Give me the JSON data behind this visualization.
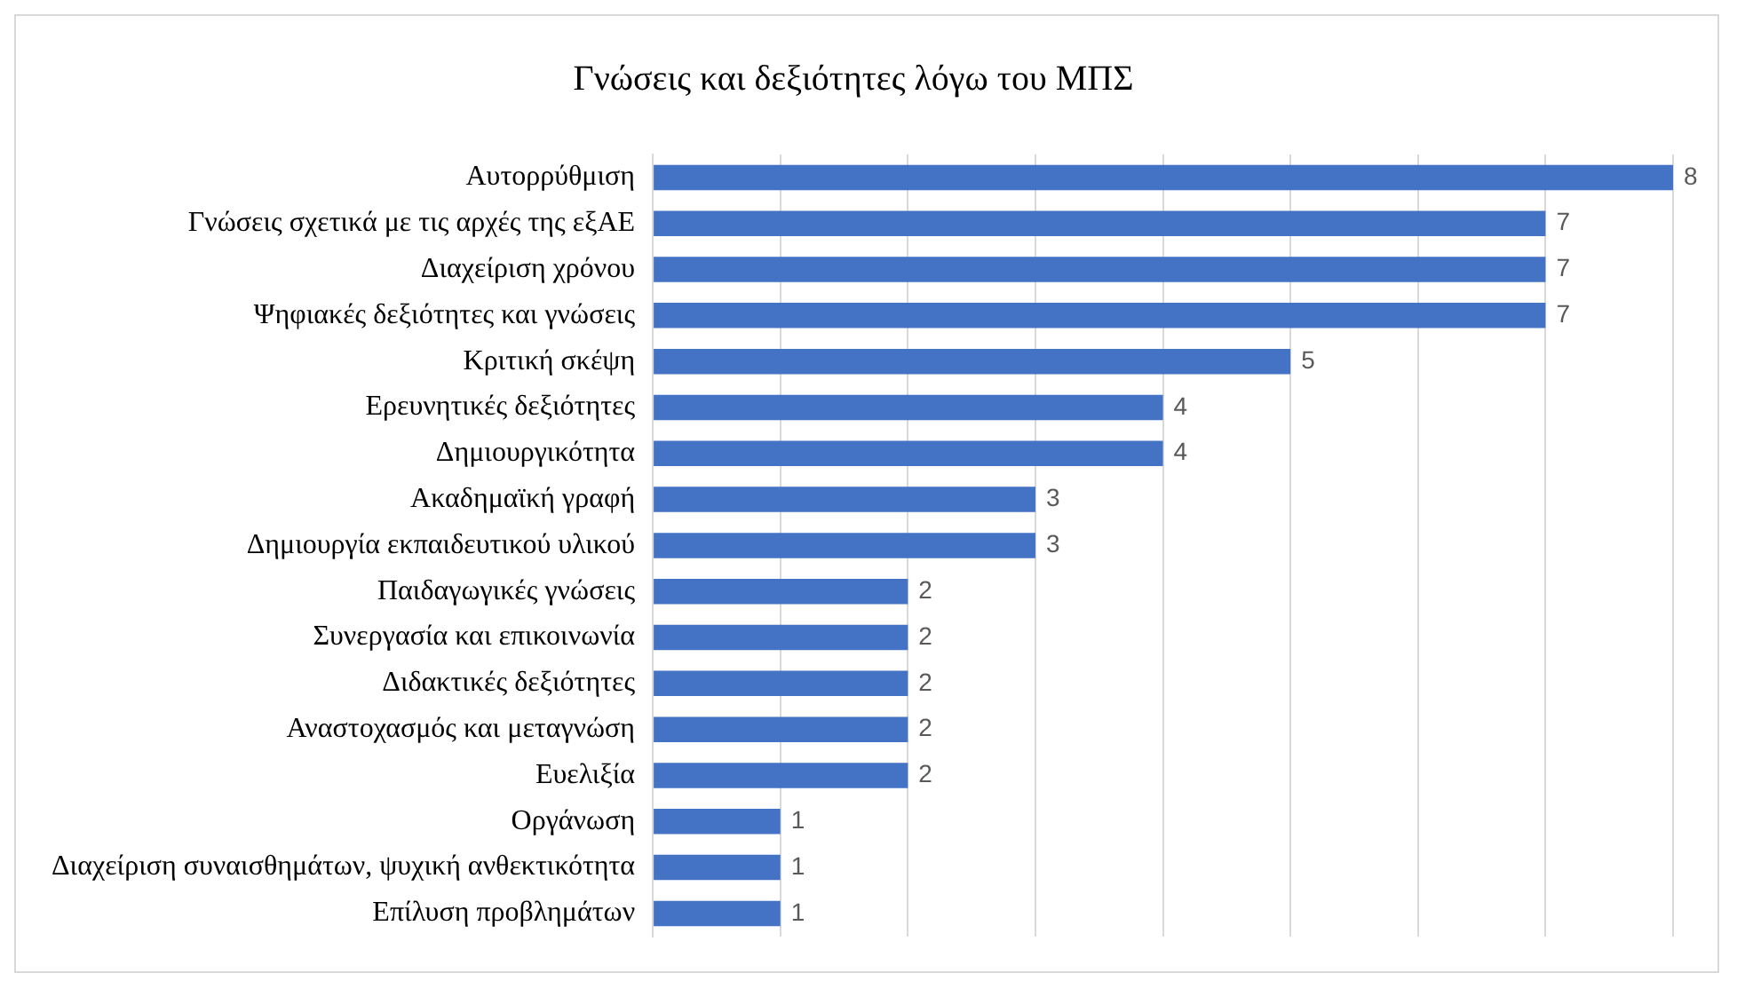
{
  "chart_data": {
    "type": "bar",
    "orientation": "horizontal",
    "title": "Γνώσεις και δεξιότητες λόγω του ΜΠΣ",
    "categories": [
      "Αυτορρύθμιση",
      "Γνώσεις σχετικά με τις αρχές της εξΑΕ",
      "Διαχείριση χρόνου",
      "Ψηφιακές δεξιότητες και γνώσεις",
      "Κριτική σκέψη",
      "Ερευνητικές δεξιότητες",
      "Δημιουργικότητα",
      "Ακαδημαϊκή γραφή",
      "Δημιουργία εκπαιδευτικού υλικού",
      "Παιδαγωγικές γνώσεις",
      "Συνεργασία και επικοινωνία",
      "Διδακτικές δεξιότητες",
      "Αναστοχασμός και μεταγνώση",
      "Ευελιξία",
      "Οργάνωση",
      "Διαχείριση συναισθημάτων, ψυχική ανθεκτικότητα",
      "Επίλυση προβλημάτων"
    ],
    "values": [
      8,
      7,
      7,
      7,
      5,
      4,
      4,
      3,
      3,
      2,
      2,
      2,
      2,
      2,
      1,
      1,
      1
    ],
    "color": "#4472c4",
    "xlim": [
      0,
      8
    ],
    "xticks": [
      0,
      1,
      2,
      3,
      4,
      5,
      6,
      7,
      8
    ],
    "grid": "x",
    "tick_labels": "y",
    "data_labels": true,
    "legend": false
  }
}
